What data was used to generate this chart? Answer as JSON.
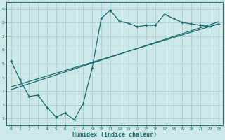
{
  "xlabel": "Humidex (Indice chaleur)",
  "xlim": [
    -0.5,
    23.5
  ],
  "ylim": [
    0.5,
    9.5
  ],
  "xticks": [
    0,
    1,
    2,
    3,
    4,
    5,
    6,
    7,
    8,
    9,
    10,
    11,
    12,
    13,
    14,
    15,
    16,
    17,
    18,
    19,
    20,
    21,
    22,
    23
  ],
  "yticks": [
    1,
    2,
    3,
    4,
    5,
    6,
    7,
    8,
    9
  ],
  "bg_color": "#cce8e8",
  "line_color": "#1a6b6b",
  "grid_color": "#aacece",
  "curve1_x": [
    0,
    1,
    2,
    3,
    4,
    5,
    6,
    7,
    8,
    9,
    10,
    11,
    12,
    13,
    14,
    15,
    16,
    17,
    18,
    19,
    20,
    21,
    22,
    23
  ],
  "curve1_y": [
    5.2,
    3.8,
    2.6,
    2.7,
    1.8,
    1.1,
    1.4,
    0.9,
    2.1,
    4.7,
    8.3,
    8.9,
    8.1,
    7.95,
    7.7,
    7.8,
    7.8,
    8.6,
    8.3,
    8.0,
    7.9,
    7.8,
    7.7,
    7.9
  ],
  "line1_x": [
    0,
    23
  ],
  "line1_y": [
    3.1,
    8.05
  ],
  "line2_x": [
    0,
    23
  ],
  "line2_y": [
    3.3,
    7.9
  ],
  "tick_fontsize": 4.5,
  "xlabel_fontsize": 6,
  "xlabel_fontweight": "bold"
}
